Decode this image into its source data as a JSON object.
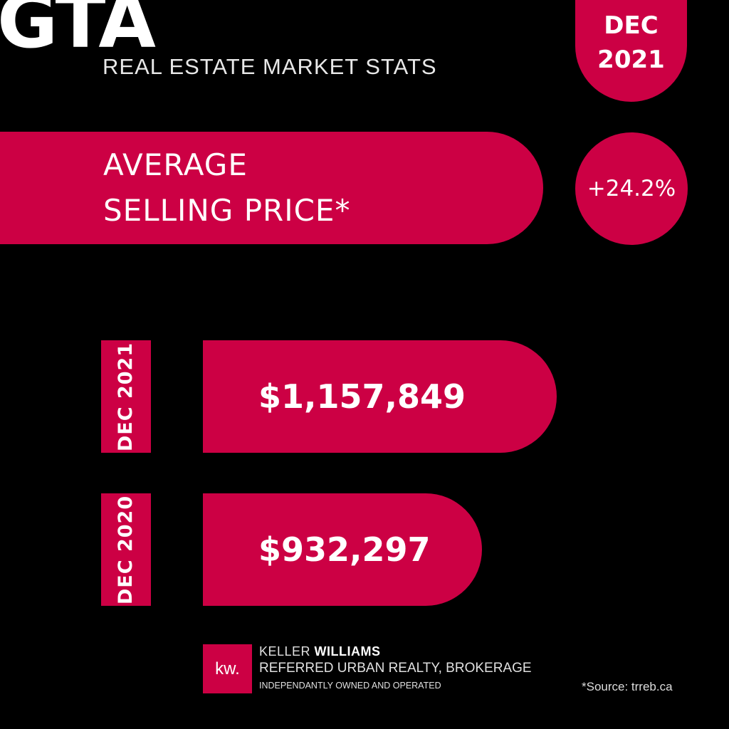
{
  "header": {
    "title": "GTA",
    "subtitle": "REAL ESTATE MARKET STATS"
  },
  "badge": {
    "month": "DEC",
    "year": "2021"
  },
  "metric": {
    "line1": "AVERAGE",
    "line2": "SELLING PRICE*",
    "change": "+24.2%"
  },
  "rows": [
    {
      "label": "DEC 2021",
      "value": "$1,157,849",
      "amount": 1157849
    },
    {
      "label": "DEC 2020",
      "value": "$932,297",
      "amount": 932297
    }
  ],
  "footer": {
    "logo": "kw.",
    "brand_light": "KELLER ",
    "brand_bold": "WILLIAMS",
    "office": "REFERRED URBAN REALTY, BROKERAGE",
    "note": "INDEPENDANTLY OWNED AND OPERATED",
    "source": "*Source: trreb.ca"
  },
  "colors": {
    "accent": "#cc0044",
    "background": "#000000"
  }
}
